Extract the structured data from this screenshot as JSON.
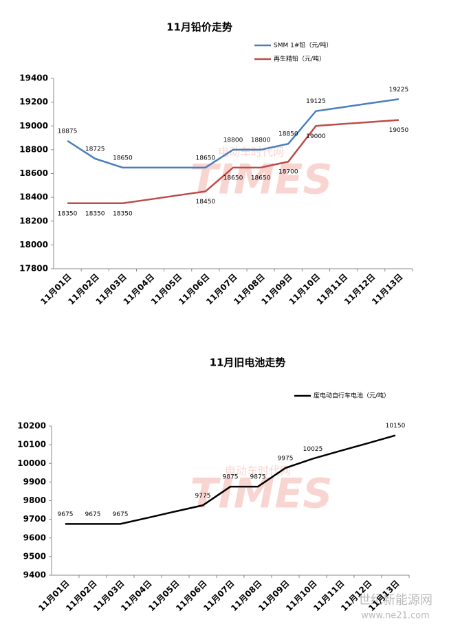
{
  "chart_data": [
    {
      "type": "line",
      "title": "11月铅价走势",
      "categories": [
        "11月01日",
        "11月02日",
        "11月03日",
        "11月04日",
        "11月05日",
        "11月06日",
        "11月07日",
        "11月08日",
        "11月09日",
        "11月10日",
        "11月11日",
        "11月12日",
        "11月13日"
      ],
      "series": [
        {
          "name": "SMM 1#铅（元/吨）",
          "color": "#4a7ebb",
          "label_position": "above",
          "values": [
            18875,
            18725,
            18650,
            18650,
            18650,
            18650,
            18800,
            18800,
            18850,
            19125,
            19158,
            19192,
            19225
          ],
          "value_labels": [
            "18875",
            "18725",
            "18650",
            null,
            null,
            "18650",
            "18800",
            "18800",
            "18850",
            "19125",
            null,
            null,
            "19225"
          ]
        },
        {
          "name": "再生精铅（元/吨）",
          "color": "#be4b48",
          "label_position": "below",
          "values": [
            18350,
            18350,
            18350,
            18383,
            18417,
            18450,
            18650,
            18650,
            18700,
            19000,
            19017,
            19033,
            19050
          ],
          "value_labels": [
            "18350",
            "18350",
            "18350",
            null,
            null,
            "18450",
            "18650",
            "18650",
            "18700",
            "19000",
            null,
            null,
            "19050"
          ]
        }
      ],
      "ylim": [
        17800,
        19400
      ],
      "yticks": [
        17800,
        18000,
        18200,
        18400,
        18600,
        18800,
        19000,
        19200,
        19400
      ],
      "grid": false
    },
    {
      "type": "line",
      "title": "11月旧电池走势",
      "categories": [
        "11月01日",
        "11月02日",
        "11月03日",
        "11月04日",
        "11月05日",
        "11月06日",
        "11月07日",
        "11月08日",
        "11月09日",
        "11月10日",
        "11月11日",
        "11月12日",
        "11月13日"
      ],
      "series": [
        {
          "name": "废电动自行车电池（元/吨）",
          "color": "#000000",
          "label_position": "above",
          "values": [
            9675,
            9675,
            9675,
            9708,
            9742,
            9775,
            9875,
            9875,
            9975,
            10025,
            10067,
            10108,
            10150
          ],
          "value_labels": [
            "9675",
            "9675",
            "9675",
            null,
            null,
            "9775",
            "9875",
            "9875",
            "9975",
            "10025",
            null,
            null,
            "10150"
          ]
        }
      ],
      "ylim": [
        9400,
        10200
      ],
      "yticks": [
        9400,
        9500,
        9600,
        9700,
        9800,
        9900,
        10000,
        10100,
        10200
      ],
      "grid": false
    }
  ],
  "watermark": {
    "logo": "TIMES",
    "name": "电动车时代网"
  },
  "corner_watermark": {
    "name": "世纪新能源网",
    "url": "www.ne21.com"
  }
}
